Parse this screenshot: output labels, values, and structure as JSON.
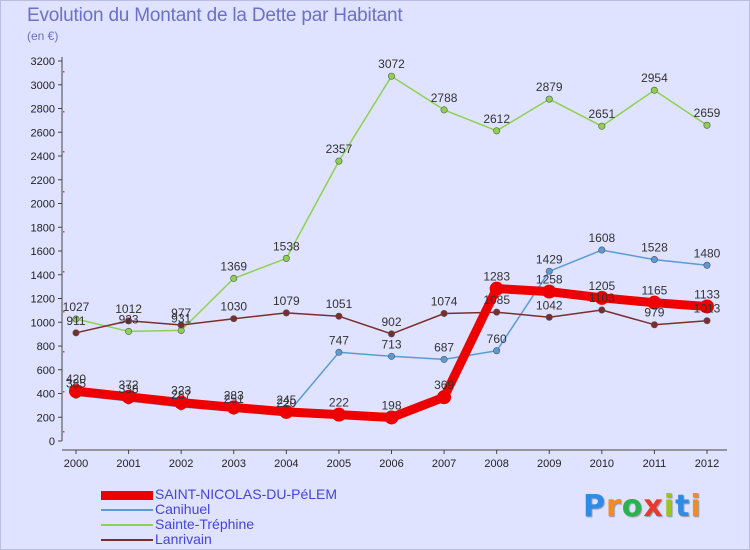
{
  "header": {
    "title": "Evolution du Montant de la Dette par Habitant",
    "subtitle": "(en €)"
  },
  "logo": {
    "text": "Proxiti",
    "letter_colors": [
      "#2e8be6",
      "#f28c1e",
      "#2bb24c",
      "#e63a2e",
      "#9bc41e",
      "#2e8be6",
      "#f28c1e"
    ]
  },
  "chart_data": {
    "type": "line",
    "title": "Evolution du Montant de la Dette par Habitant",
    "ylabel": "(en €)",
    "xlabel": "",
    "ylim": [
      0,
      3200
    ],
    "ytick_step": 200,
    "grid": false,
    "legend_position": "bottom-left",
    "x": [
      "2000",
      "2001",
      "2002",
      "2003",
      "2004",
      "2005",
      "2006",
      "2007",
      "2008",
      "2009",
      "2010",
      "2011",
      "2012"
    ],
    "yticks": [
      "0",
      "200",
      "400",
      "600",
      "800",
      "1000",
      "1200",
      "1400",
      "1600",
      "1800",
      "2000",
      "2200",
      "2400",
      "2600",
      "2800",
      "3000",
      "3200"
    ],
    "series": [
      {
        "name": "SAINT-NICOLAS-DU-PéLEM",
        "color": "#ee0000",
        "values": [
          420,
          372,
          323,
          283,
          245,
          222,
          198,
          369,
          1283,
          1258,
          1205,
          1165,
          1133
        ],
        "labels": [
          "420",
          "372",
          "323",
          "283",
          "245",
          "222",
          "198",
          "369",
          "1283",
          "1258",
          "1205",
          "1165",
          "1133"
        ],
        "emphasis": true
      },
      {
        "name": "Canihuel",
        "color": "#5b9bd5",
        "values": [
          385,
          338,
          287,
          251,
          220,
          747,
          713,
          687,
          760,
          1429,
          1608,
          1528,
          1480
        ],
        "labels": [
          "385",
          "338",
          "287",
          "251",
          "220",
          "747",
          "713",
          "687",
          "760",
          "1429",
          "1608",
          "1528",
          "1480"
        ],
        "emphasis": false
      },
      {
        "name": "Sainte-Tréphine",
        "color": "#8fd14f",
        "values": [
          1027,
          923,
          931,
          1369,
          1538,
          2357,
          3072,
          2788,
          2612,
          2879,
          2651,
          2954,
          2659
        ],
        "labels": [
          "1027",
          "923",
          "931",
          "1369",
          "1538",
          "2357",
          "3072",
          "2788",
          "2612",
          "2879",
          "2651",
          "2954",
          "2659"
        ],
        "emphasis": false
      },
      {
        "name": "Lanrivain",
        "color": "#7b2e2e",
        "values": [
          911,
          1012,
          977,
          1030,
          1079,
          1051,
          902,
          1074,
          1085,
          1042,
          1103,
          979,
          1013
        ],
        "labels": [
          "911",
          "1012",
          "977",
          "1030",
          "1079",
          "1051",
          "902",
          "1074",
          "1085",
          "1042",
          "1103",
          "979",
          "1013"
        ],
        "emphasis": false
      }
    ]
  }
}
